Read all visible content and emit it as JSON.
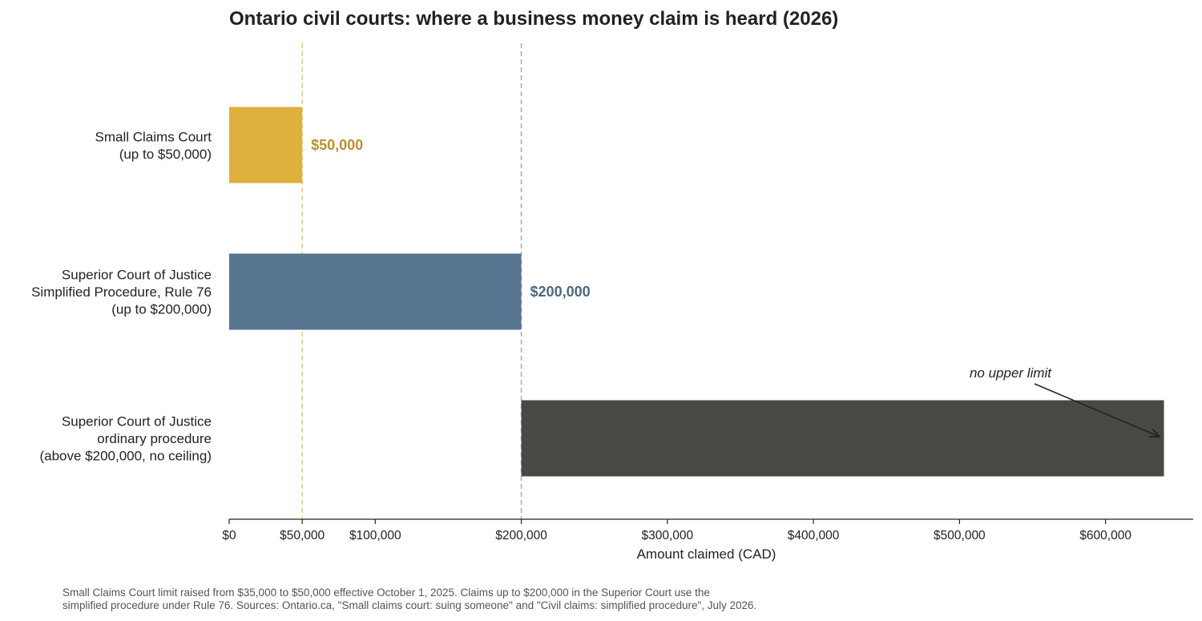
{
  "chart_data": {
    "type": "bar",
    "orientation": "horizontal",
    "title": "Ontario civil courts: where a business money claim is heard (2026)",
    "xlabel": "Amount claimed (CAD)",
    "ylabel": "",
    "xlim": [
      0,
      660000
    ],
    "grid": false,
    "legend": "none",
    "xticks": [
      {
        "value": 0,
        "label": "$0"
      },
      {
        "value": 50000,
        "label": "$50,000"
      },
      {
        "value": 100000,
        "label": "$100,000"
      },
      {
        "value": 200000,
        "label": "$200,000"
      },
      {
        "value": 300000,
        "label": "$300,000"
      },
      {
        "value": 400000,
        "label": "$400,000"
      },
      {
        "value": 500000,
        "label": "$500,000"
      },
      {
        "value": 600000,
        "label": "$600,000"
      }
    ],
    "bars": [
      {
        "category": [
          "Small Claims Court",
          "(up to $50,000)"
        ],
        "start": 0,
        "end": 50000,
        "value_label": "$50,000",
        "color": "#DEB03C",
        "label_color": "#B8912F"
      },
      {
        "category": [
          "Superior Court of Justice",
          "Simplified Procedure, Rule 76",
          "(up to $200,000)"
        ],
        "start": 0,
        "end": 200000,
        "value_label": "$200,000",
        "color": "#587591",
        "label_color": "#4E6880"
      },
      {
        "category": [
          "Superior Court of Justice",
          "ordinary procedure",
          "(above $200,000, no ceiling)"
        ],
        "start": 200000,
        "end": 640000,
        "value_label": "",
        "color": "#494844",
        "label_color": "#494844"
      }
    ],
    "reference_lines": [
      {
        "value": 50000,
        "color": "#E6C886"
      },
      {
        "value": 200000,
        "color": "#AAAAAA"
      }
    ],
    "annotations": [
      {
        "text": "no upper limit",
        "points_to_x": 637000,
        "bar_index": 2
      }
    ]
  },
  "footnote": [
    "Small Claims Court limit raised from $35,000 to $50,000 effective October 1, 2025. Claims up to $200,000 in the Superior Court use the",
    "simplified procedure under Rule 76. Sources: Ontario.ca, \"Small claims court: suing someone\" and \"Civil claims: simplified procedure\", July 2026."
  ]
}
